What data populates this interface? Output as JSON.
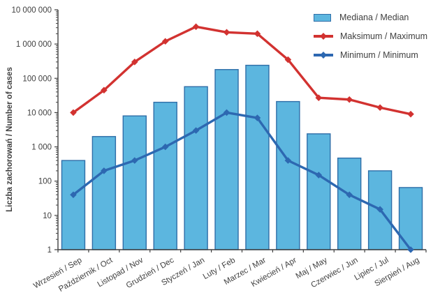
{
  "figure_title": "",
  "y_axis_title": "Liczba zachorowań / Number of cases",
  "legend": {
    "median_label": "Mediana / Median",
    "maximum_label": "Maksimum / Maximum",
    "minimum_label": "Minimum / Minimum"
  },
  "colors": {
    "bar_fill": "#5cb6df",
    "bar_border": "#2f6ea8",
    "max_line": "#d23230",
    "min_line": "#2d68b1",
    "axis": "#404040",
    "text": "#3f3f3f"
  },
  "chart_data": {
    "type": "bar",
    "subtype": "combo-bar-and-lines",
    "y_scale": "log",
    "ylim": [
      1,
      10000000
    ],
    "grid": false,
    "legend_position": "top-right",
    "title": "",
    "xlabel": "",
    "ylabel": "Liczba zachorowań / Number of cases",
    "y_tick_labels": [
      "1",
      "10",
      "100",
      "1 000",
      "10 000",
      "100 000",
      "1 000 000",
      "10 000 000"
    ],
    "categories": [
      "Wrzesień / Sep",
      "Październik / Oct",
      "Listopad / Nov",
      "Grudzień / Dec",
      "Styczeń / Jan",
      "Luty / Feb",
      "Marzec / Mar",
      "Kwiecień / Apr",
      "Maj / May",
      "Czerwiec / Jun",
      "Lipiec / Jul",
      "Sierpień / Aug"
    ],
    "series": [
      {
        "name": "Mediana / Median",
        "type": "bar",
        "values": [
          400,
          2000,
          8000,
          20000,
          57000,
          180000,
          240000,
          21000,
          2400,
          470,
          200,
          65
        ]
      },
      {
        "name": "Maksimum / Maximum",
        "type": "line",
        "values": [
          10000,
          45000,
          300000,
          1200000,
          3200000,
          2200000,
          2000000,
          350000,
          27000,
          24000,
          14000,
          9000
        ]
      },
      {
        "name": "Minimum / Minimum",
        "type": "line",
        "values": [
          40,
          200,
          400,
          1000,
          3000,
          10000,
          7000,
          400,
          150,
          40,
          15,
          1
        ]
      }
    ]
  }
}
